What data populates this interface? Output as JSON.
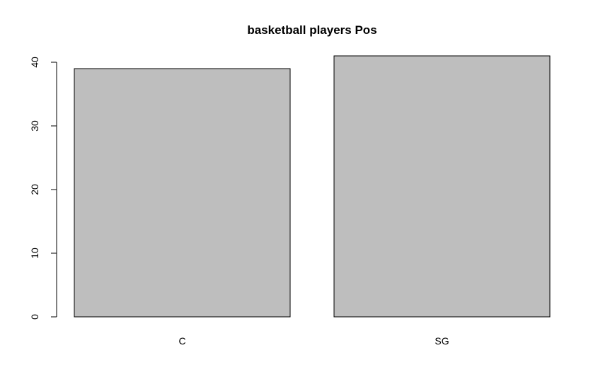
{
  "chart_data": {
    "type": "bar",
    "title": "basketball players Pos",
    "xlabel": "",
    "ylabel": "",
    "categories": [
      "C",
      "SG"
    ],
    "values": [
      39,
      41
    ],
    "ylim": [
      0,
      40
    ],
    "yticks": [
      "0",
      "10",
      "20",
      "30",
      "40"
    ],
    "grid": false,
    "legend": "none",
    "bar_color": "#bebebe",
    "bar_border_color": "#000000"
  }
}
